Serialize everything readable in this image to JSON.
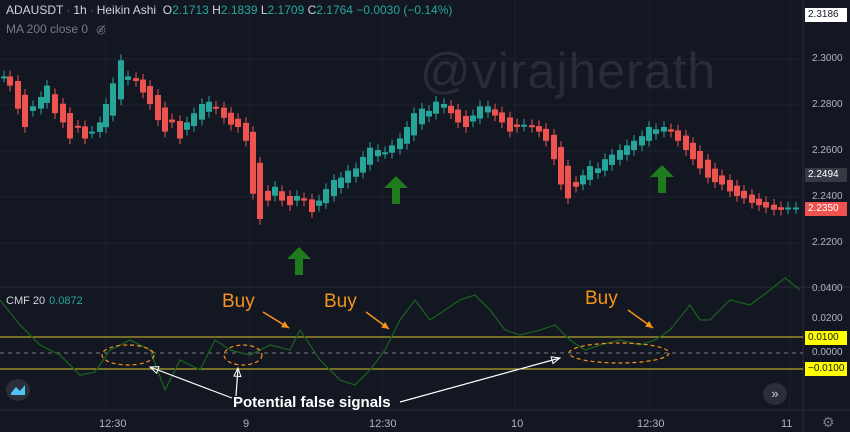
{
  "header": {
    "symbol": "ADAUSDT",
    "interval": "1h",
    "chart_style": "Heikin Ashi",
    "open_label": "O",
    "open_value": "2.1713",
    "high_label": "H",
    "high_value": "2.1839",
    "low_label": "L",
    "low_value": "2.1709",
    "close_label": "C",
    "close_value": "2.1764",
    "change": "−0.0030 (−0.14%)"
  },
  "ma_label": "MA 200 close 0",
  "cmf_indicator": {
    "name": "CMF 20",
    "value": "0.0872"
  },
  "watermark": "@virajherath",
  "annotations": {
    "buy_labels": [
      "Buy",
      "Buy",
      "Buy"
    ],
    "false_signals": "Potential false signals"
  },
  "price_axis": {
    "ticks": [
      "2.3000",
      "2.2800",
      "2.2600",
      "2.2400",
      "2.2200"
    ],
    "top_tag": "2.3186",
    "last_price_tag": "2.2494",
    "current_tag": "2.2350"
  },
  "cmf_axis": {
    "ticks": [
      "0.0400",
      "0.0200",
      "0.0000"
    ],
    "upper_level_tag": "0.0100",
    "lower_level_tag": "−0.0100"
  },
  "time_axis": [
    "12:30",
    "9",
    "12:30",
    "10",
    "12:30",
    "11"
  ],
  "colors": {
    "background": "#131722",
    "bull": "#26a69a",
    "bear": "#ef5350",
    "cmf_line": "#1b5e20",
    "level_line": "#d4c52a",
    "annotation": "#f7931a",
    "buy_arrow": "#1e7b1e"
  },
  "icons": {
    "visibility": "eye-crossed-icon",
    "logo": "tradingview-logo-icon",
    "scroll": "fast-forward-icon",
    "settings": "gear-icon"
  }
}
